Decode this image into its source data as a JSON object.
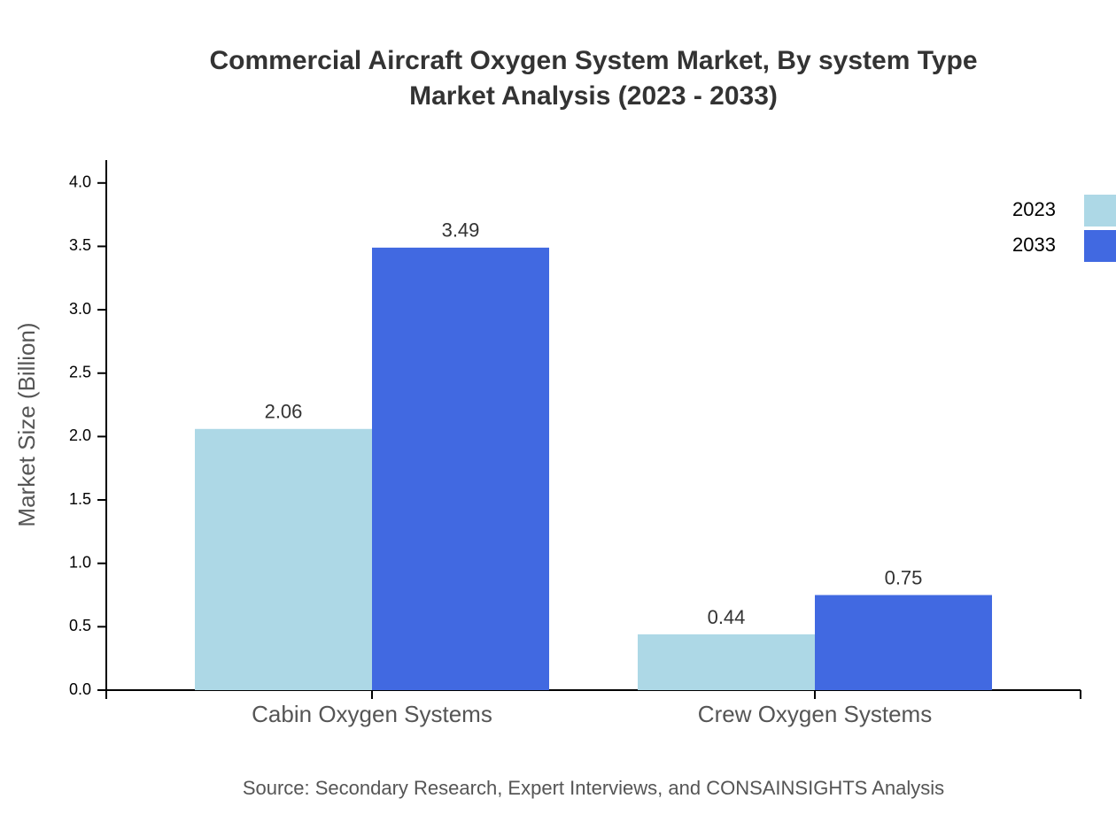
{
  "chart_data": {
    "type": "bar",
    "title": "Commercial Aircraft Oxygen System Market, By system Type",
    "subtitle": "Market Analysis (2023 - 2033)",
    "y_label": "Market Size (Billion)",
    "source": "Source: Secondary Research, Expert Interviews, and CONSAINSIGHTS Analysis",
    "categories": [
      "Cabin Oxygen Systems",
      "Crew Oxygen Systems"
    ],
    "series": [
      {
        "name": "2023",
        "color": "#add8e6",
        "values": [
          2.06,
          0.44
        ]
      },
      {
        "name": "2033",
        "color": "#4169e1",
        "values": [
          3.49,
          0.75
        ]
      }
    ],
    "ylim": [
      0,
      4.18
    ],
    "yticks": [
      {
        "value": 0,
        "label": "0.0"
      },
      0.5,
      {
        "value": 1,
        "label": "1.0"
      },
      1.5,
      {
        "value": 2,
        "label": "2.0"
      },
      2.5,
      {
        "value": 3,
        "label": "3.0"
      },
      3.5,
      {
        "value": 4,
        "label": "4.0"
      }
    ],
    "legend": "top-right",
    "grid": false
  }
}
